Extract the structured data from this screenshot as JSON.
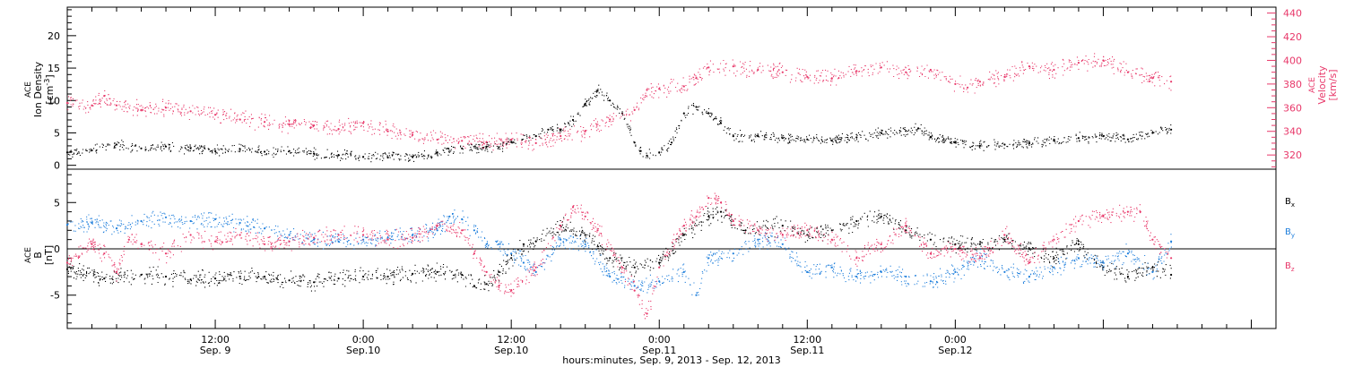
{
  "colors": {
    "black": "#000000",
    "pink": "#e8386a",
    "blue": "#1f7fdc"
  },
  "chart_data": [
    {
      "type": "scatter",
      "panel": "plasma",
      "ylabel_left": {
        "line1": "ACE",
        "line2": "Ion Density",
        "unit_base": "[cm",
        "unit_sup": "-3",
        "unit_end": "]"
      },
      "ylabel_right": {
        "line1": "ACE",
        "line2": "Velocity",
        "unit": "[km/s]"
      },
      "ylim_left": [
        -0.6,
        24.4
      ],
      "yticks_left": [
        0,
        5,
        10,
        15,
        20
      ],
      "ylim_right": [
        308,
        445
      ],
      "yticks_right": [
        320,
        340,
        360,
        380,
        400,
        420,
        440
      ],
      "x_range_hours": [
        0,
        98
      ],
      "series": [
        {
          "key": "density",
          "color_key": "black",
          "axis": "left",
          "points": [
            [
              0,
              2.0
            ],
            [
              2,
              2.3
            ],
            [
              4,
              3.2
            ],
            [
              6,
              2.6
            ],
            [
              8,
              2.9
            ],
            [
              10,
              2.6
            ],
            [
              12,
              2.2
            ],
            [
              14,
              2.5
            ],
            [
              16,
              2.1
            ],
            [
              18,
              2.2
            ],
            [
              20,
              1.8
            ],
            [
              22,
              1.6
            ],
            [
              24,
              1.3
            ],
            [
              26,
              1.2
            ],
            [
              28,
              1.3
            ],
            [
              30,
              2.0
            ],
            [
              32,
              2.6
            ],
            [
              34,
              2.9
            ],
            [
              35,
              2.8
            ],
            [
              36,
              3.6
            ],
            [
              38,
              4.5
            ],
            [
              39,
              5.5
            ],
            [
              40,
              5.5
            ],
            [
              41,
              7.0
            ],
            [
              42,
              9.5
            ],
            [
              43,
              11.5
            ],
            [
              44,
              10.0
            ],
            [
              45,
              8.0
            ],
            [
              46,
              3.5
            ],
            [
              46.5,
              2.2
            ],
            [
              47,
              1.5
            ],
            [
              48,
              2.0
            ],
            [
              49,
              3.5
            ],
            [
              50,
              8.0
            ],
            [
              51,
              9.0
            ],
            [
              52,
              8.0
            ],
            [
              53,
              6.5
            ],
            [
              54,
              4.5
            ],
            [
              56,
              4.5
            ],
            [
              58,
              4.2
            ],
            [
              60,
              4.0
            ],
            [
              62,
              3.8
            ],
            [
              64,
              4.3
            ],
            [
              66,
              5.0
            ],
            [
              68,
              5.3
            ],
            [
              69,
              5.7
            ],
            [
              70,
              4.4
            ],
            [
              72,
              3.5
            ],
            [
              74,
              3.0
            ],
            [
              76,
              3.2
            ],
            [
              78,
              3.4
            ],
            [
              80,
              3.8
            ],
            [
              82,
              4.2
            ],
            [
              84,
              4.5
            ],
            [
              86,
              4.0
            ],
            [
              88,
              5.0
            ],
            [
              89.5,
              5.5
            ]
          ]
        },
        {
          "key": "velocity",
          "color_key": "pink",
          "axis": "right",
          "points": [
            [
              0,
              364
            ],
            [
              2,
              362
            ],
            [
              3,
              370
            ],
            [
              4,
              362
            ],
            [
              6,
              358
            ],
            [
              8,
              360
            ],
            [
              10,
              357
            ],
            [
              12,
              354
            ],
            [
              14,
              350
            ],
            [
              16,
              348
            ],
            [
              18,
              346
            ],
            [
              20,
              345
            ],
            [
              22,
              342
            ],
            [
              24,
              347
            ],
            [
              26,
              340
            ],
            [
              28,
              337
            ],
            [
              30,
              333
            ],
            [
              32,
              332
            ],
            [
              34,
              331
            ],
            [
              36,
              333
            ],
            [
              38,
              330
            ],
            [
              40,
              336
            ],
            [
              42,
              340
            ],
            [
              44,
              350
            ],
            [
              46,
              358
            ],
            [
              47,
              375
            ],
            [
              48,
              376
            ],
            [
              50,
              378
            ],
            [
              51,
              385
            ],
            [
              52,
              394
            ],
            [
              54,
              395
            ],
            [
              56,
              392
            ],
            [
              58,
              390
            ],
            [
              60,
              386
            ],
            [
              62,
              385
            ],
            [
              64,
              391
            ],
            [
              66,
              394
            ],
            [
              68,
              390
            ],
            [
              70,
              392
            ],
            [
              72,
              380
            ],
            [
              73,
              377
            ],
            [
              74,
              382
            ],
            [
              76,
              386
            ],
            [
              78,
              395
            ],
            [
              80,
              392
            ],
            [
              82,
              398
            ],
            [
              84,
              400
            ],
            [
              86,
              390
            ],
            [
              88,
              385
            ],
            [
              89.5,
              382
            ]
          ]
        }
      ]
    },
    {
      "type": "scatter",
      "panel": "magnetic-field",
      "ylabel": {
        "line1": "ACE",
        "line2": "B",
        "unit": "[nT]"
      },
      "ylim": [
        -8.6,
        8.6
      ],
      "yticks": [
        -5,
        0,
        5
      ],
      "x_range_hours": [
        0,
        98
      ],
      "series": [
        {
          "key": "bx",
          "color_key": "black",
          "legend_base": "B",
          "legend_sub": "x",
          "points": [
            [
              0,
              -2.2
            ],
            [
              3,
              -3.2
            ],
            [
              6,
              -2.8
            ],
            [
              8,
              -3.0
            ],
            [
              10,
              -3.3
            ],
            [
              12,
              -3.2
            ],
            [
              14,
              -3.0
            ],
            [
              16,
              -3.0
            ],
            [
              18,
              -3.4
            ],
            [
              20,
              -3.6
            ],
            [
              22,
              -3.2
            ],
            [
              24,
              -3.0
            ],
            [
              26,
              -3.0
            ],
            [
              28,
              -2.7
            ],
            [
              30,
              -2.5
            ],
            [
              32,
              -2.8
            ],
            [
              33,
              -4.0
            ],
            [
              34,
              -3.8
            ],
            [
              35,
              -2.5
            ],
            [
              36,
              -1.0
            ],
            [
              37,
              0.5
            ],
            [
              38,
              0.8
            ],
            [
              40,
              2.5
            ],
            [
              42,
              1.5
            ],
            [
              44,
              -1.0
            ],
            [
              46,
              -2.0
            ],
            [
              48,
              -1.5
            ],
            [
              50,
              1.5
            ],
            [
              52,
              3.5
            ],
            [
              53,
              4.0
            ],
            [
              55,
              2.0
            ],
            [
              58,
              2.5
            ],
            [
              60,
              1.5
            ],
            [
              62,
              2.0
            ],
            [
              64,
              3.0
            ],
            [
              66,
              3.5
            ],
            [
              68,
              2.0
            ],
            [
              70,
              1.0
            ],
            [
              72,
              0.5
            ],
            [
              74,
              0.5
            ],
            [
              76,
              1.0
            ],
            [
              78,
              0.0
            ],
            [
              80,
              -1.0
            ],
            [
              82,
              0.5
            ],
            [
              84,
              -2.0
            ],
            [
              86,
              -3.0
            ],
            [
              88,
              -2.0
            ],
            [
              89.5,
              -2.8
            ]
          ]
        },
        {
          "key": "by",
          "color_key": "blue",
          "legend_base": "B",
          "legend_sub": "y",
          "points": [
            [
              0,
              2.6
            ],
            [
              2,
              2.8
            ],
            [
              4,
              2.2
            ],
            [
              6,
              3.0
            ],
            [
              8,
              3.4
            ],
            [
              10,
              3.0
            ],
            [
              12,
              3.2
            ],
            [
              14,
              2.8
            ],
            [
              16,
              2.2
            ],
            [
              18,
              1.5
            ],
            [
              20,
              1.0
            ],
            [
              22,
              0.8
            ],
            [
              24,
              1.0
            ],
            [
              26,
              1.2
            ],
            [
              28,
              1.5
            ],
            [
              30,
              2.0
            ],
            [
              31,
              3.5
            ],
            [
              32,
              3.2
            ],
            [
              33,
              2.0
            ],
            [
              34,
              0.5
            ],
            [
              35,
              0.5
            ],
            [
              36,
              -0.5
            ],
            [
              37,
              -1.5
            ],
            [
              38,
              -2.5
            ],
            [
              40,
              1.0
            ],
            [
              42,
              0.5
            ],
            [
              44,
              -3.0
            ],
            [
              46,
              -4.0
            ],
            [
              48,
              -3.5
            ],
            [
              50,
              -2.5
            ],
            [
              51,
              -5.0
            ],
            [
              52,
              -1.0
            ],
            [
              54,
              -0.5
            ],
            [
              56,
              1.0
            ],
            [
              58,
              0.5
            ],
            [
              60,
              -2.5
            ],
            [
              62,
              -2.0
            ],
            [
              64,
              -3.0
            ],
            [
              66,
              -2.5
            ],
            [
              68,
              -3.0
            ],
            [
              70,
              -3.5
            ],
            [
              72,
              -2.5
            ],
            [
              74,
              -1.0
            ],
            [
              76,
              -2.5
            ],
            [
              78,
              -3.0
            ],
            [
              80,
              -2.0
            ],
            [
              82,
              -1.0
            ],
            [
              84,
              -1.5
            ],
            [
              86,
              -0.5
            ],
            [
              88,
              -2.5
            ],
            [
              89.5,
              0.8
            ]
          ]
        },
        {
          "key": "bz",
          "color_key": "pink",
          "legend_base": "B",
          "legend_sub": "z",
          "points": [
            [
              0,
              -1.5
            ],
            [
              2,
              0.5
            ],
            [
              3,
              -0.5
            ],
            [
              4,
              -2.5
            ],
            [
              5,
              1.0
            ],
            [
              6,
              0.5
            ],
            [
              8,
              -0.5
            ],
            [
              10,
              1.5
            ],
            [
              12,
              0.8
            ],
            [
              14,
              1.5
            ],
            [
              16,
              0.5
            ],
            [
              18,
              0.8
            ],
            [
              20,
              1.2
            ],
            [
              22,
              1.5
            ],
            [
              24,
              1.5
            ],
            [
              26,
              1.0
            ],
            [
              28,
              1.2
            ],
            [
              30,
              2.5
            ],
            [
              32,
              2.0
            ],
            [
              33,
              -0.5
            ],
            [
              34,
              -2.5
            ],
            [
              35,
              -4.0
            ],
            [
              36,
              -4.5
            ],
            [
              38,
              -2.0
            ],
            [
              40,
              2.5
            ],
            [
              41,
              4.5
            ],
            [
              42,
              3.5
            ],
            [
              43,
              2.0
            ],
            [
              45,
              -2.0
            ],
            [
              46,
              -4.5
            ],
            [
              47,
              -7.0
            ],
            [
              48,
              -2.0
            ],
            [
              50,
              2.5
            ],
            [
              51,
              3.5
            ],
            [
              52,
              5.5
            ],
            [
              53,
              5.0
            ],
            [
              54,
              3.0
            ],
            [
              56,
              2.0
            ],
            [
              58,
              1.5
            ],
            [
              60,
              2.0
            ],
            [
              62,
              1.0
            ],
            [
              64,
              -1.0
            ],
            [
              66,
              0.5
            ],
            [
              68,
              2.5
            ],
            [
              70,
              -0.5
            ],
            [
              72,
              0.0
            ],
            [
              74,
              -1.0
            ],
            [
              76,
              1.5
            ],
            [
              78,
              -1.5
            ],
            [
              80,
              1.0
            ],
            [
              82,
              3.0
            ],
            [
              84,
              3.5
            ],
            [
              86,
              4.0
            ],
            [
              87,
              4.0
            ],
            [
              88,
              1.0
            ],
            [
              89.5,
              -1.0
            ]
          ]
        }
      ]
    }
  ],
  "x_axis": {
    "ticks": [
      {
        "hour": 12,
        "line1": "12:00",
        "line2": "Sep. 9"
      },
      {
        "hour": 24,
        "line1": "0:00",
        "line2": "Sep.10"
      },
      {
        "hour": 36,
        "line1": "12:00",
        "line2": "Sep.10"
      },
      {
        "hour": 48,
        "line1": "0:00",
        "line2": "Sep.11"
      },
      {
        "hour": 60,
        "line1": "12:00",
        "line2": "Sep.11"
      },
      {
        "hour": 72,
        "line1": "0:00",
        "line2": "Sep.12"
      }
    ],
    "xlabel": "hours:minutes, Sep.  9, 2013 - Sep. 12, 2013"
  }
}
